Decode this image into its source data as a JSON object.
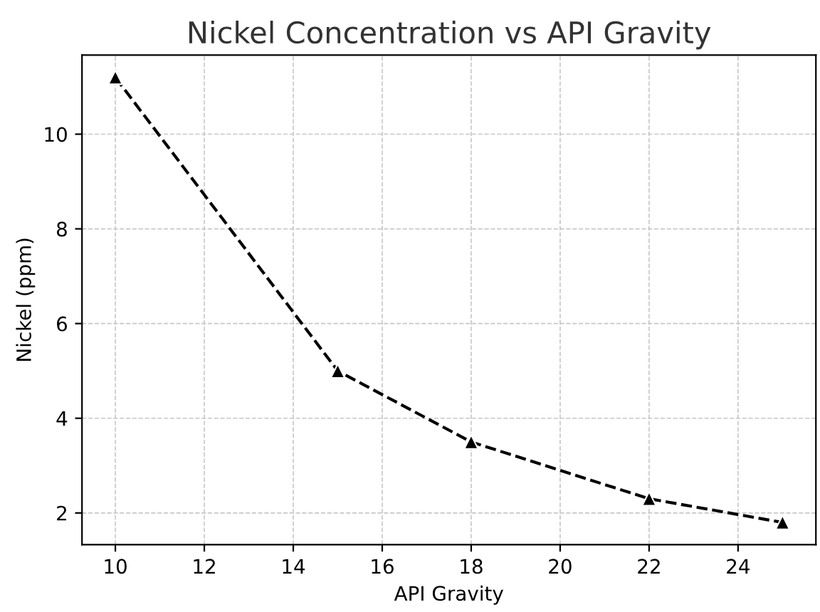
{
  "chart_data": {
    "type": "line",
    "title": "Nickel Concentration vs API Gravity",
    "xlabel": "API Gravity",
    "ylabel": "Nickel (ppm)",
    "x": [
      10,
      15,
      18,
      22,
      25
    ],
    "series": [
      {
        "color": "#000000",
        "values": [
          11.2,
          5.0,
          3.5,
          2.3,
          1.8
        ]
      }
    ],
    "marker": "triangle",
    "line_style": "dashed",
    "grid": true,
    "xlim": [
      9.25,
      25.75
    ],
    "xticks": [
      10,
      12,
      14,
      16,
      18,
      20,
      22,
      24
    ],
    "ylim": [
      1.33,
      11.67
    ],
    "yticks": [
      2,
      4,
      6,
      8,
      10
    ]
  }
}
